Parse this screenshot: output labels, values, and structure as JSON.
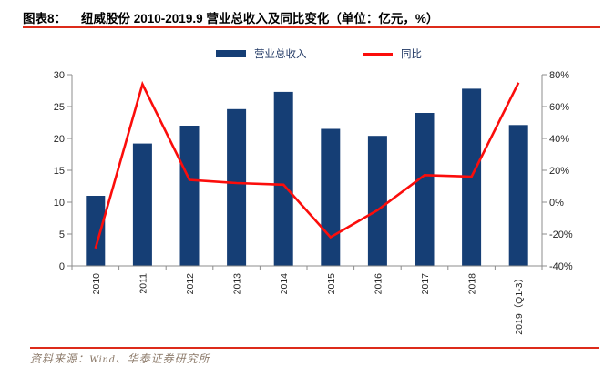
{
  "header": {
    "figure_label": "图表8：",
    "title": "纽威股份 2010-2019.9 营业总收入及同比变化（单位：亿元，%）"
  },
  "palette": {
    "rule_red": "#dd2b1a",
    "bar_blue": "#153e75",
    "line_red": "#fb0d0b",
    "axis_gray": "#8c8c8c",
    "label_dark": "#262626",
    "footer_brown": "#8d7b6b"
  },
  "legend": {
    "items": [
      {
        "label": "营业总收入",
        "type": "bar",
        "color": "#153e75"
      },
      {
        "label": "同比",
        "type": "line",
        "color": "#fb0d0b"
      }
    ]
  },
  "chart_data": {
    "type": "bar+line",
    "title": "纽威股份 2010-2019.9 营业总收入及同比变化",
    "units": {
      "left": "亿元",
      "right": "%"
    },
    "grid": false,
    "legend_position": "top",
    "categories": [
      "2010",
      "2011",
      "2012",
      "2013",
      "2014",
      "2015",
      "2016",
      "2017",
      "2018",
      "2019（Q1-3）"
    ],
    "series": [
      {
        "name": "营业总收入",
        "type": "bar",
        "axis": "left",
        "color": "#153e75",
        "values": [
          11.0,
          19.2,
          22.0,
          24.6,
          27.3,
          21.5,
          20.4,
          24.0,
          27.8,
          22.1
        ]
      },
      {
        "name": "同比",
        "type": "line",
        "axis": "right",
        "color": "#fb0d0b",
        "values": [
          -29,
          74,
          14,
          12,
          11,
          -22,
          -5,
          17,
          16,
          75
        ]
      }
    ],
    "left_axis": {
      "min": 0,
      "max": 30,
      "ticks": [
        0,
        5,
        10,
        15,
        20,
        25,
        30
      ]
    },
    "right_axis": {
      "min": -40,
      "max": 80,
      "ticks": [
        {
          "value": -40,
          "label": "-40%"
        },
        {
          "value": -20,
          "label": "-20%"
        },
        {
          "value": 0,
          "label": "0%"
        },
        {
          "value": 20,
          "label": "20%"
        },
        {
          "value": 40,
          "label": "40%"
        },
        {
          "value": 60,
          "label": "60%"
        },
        {
          "value": 80,
          "label": "80%"
        }
      ]
    }
  },
  "footer": {
    "source": "资料来源：Wind、华泰证券研究所"
  }
}
